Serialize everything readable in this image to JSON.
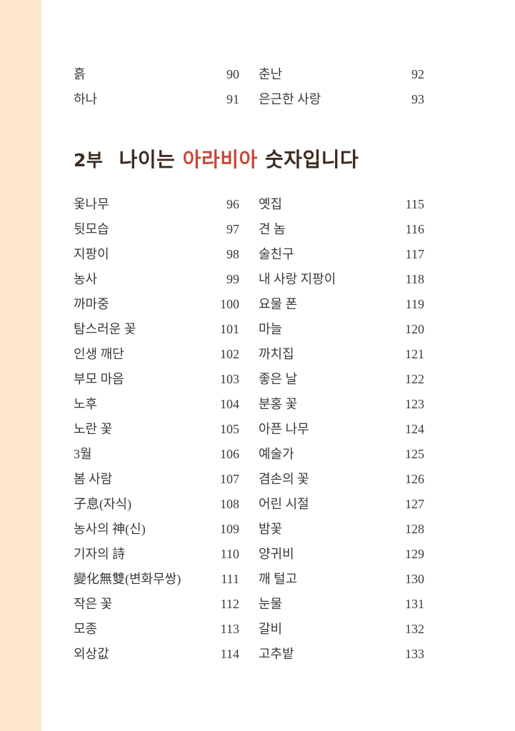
{
  "colors": {
    "margin_strip": "#fde6cc",
    "title": "#3d2a1f",
    "title_highlight": "#c5483a"
  },
  "top_entries": [
    {
      "left": {
        "title": "흙",
        "page": "90"
      },
      "right": {
        "title": "춘난",
        "page": "92"
      }
    },
    {
      "left": {
        "title": "하나",
        "page": "91"
      },
      "right": {
        "title": "은근한 사랑",
        "page": "93"
      }
    }
  ],
  "section": {
    "part": "2부",
    "title_before": "나이는",
    "title_highlight": "아라비아",
    "title_after": "숫자입니다"
  },
  "entries": [
    {
      "left": {
        "title": "옻나무",
        "page": "96"
      },
      "right": {
        "title": "옛집",
        "page": "115"
      }
    },
    {
      "left": {
        "title": "뒷모습",
        "page": "97"
      },
      "right": {
        "title": "견 놈",
        "page": "116"
      }
    },
    {
      "left": {
        "title": "지팡이",
        "page": "98"
      },
      "right": {
        "title": "술친구",
        "page": "117"
      }
    },
    {
      "left": {
        "title": "농사",
        "page": "99"
      },
      "right": {
        "title": "내 사랑 지팡이",
        "page": "118"
      }
    },
    {
      "left": {
        "title": "까마중",
        "page": "100"
      },
      "right": {
        "title": "요물 폰",
        "page": "119"
      }
    },
    {
      "left": {
        "title": "탐스러운 꽃",
        "page": "101"
      },
      "right": {
        "title": "마늘",
        "page": "120"
      }
    },
    {
      "left": {
        "title": "인생 깨단",
        "page": "102"
      },
      "right": {
        "title": "까치집",
        "page": "121"
      }
    },
    {
      "left": {
        "title": "부모 마음",
        "page": "103"
      },
      "right": {
        "title": "좋은 날",
        "page": "122"
      }
    },
    {
      "left": {
        "title": "노후",
        "page": "104"
      },
      "right": {
        "title": "분홍 꽃",
        "page": "123"
      }
    },
    {
      "left": {
        "title": "노란 꽃",
        "page": "105"
      },
      "right": {
        "title": "아픈 나무",
        "page": "124"
      }
    },
    {
      "left": {
        "title": "3월",
        "page": "106"
      },
      "right": {
        "title": "예술가",
        "page": "125"
      }
    },
    {
      "left": {
        "title": "봄 사람",
        "page": "107"
      },
      "right": {
        "title": "겸손의 꽃",
        "page": "126"
      }
    },
    {
      "left": {
        "title": "子息(자식)",
        "page": "108"
      },
      "right": {
        "title": "어린 시절",
        "page": "127"
      }
    },
    {
      "left": {
        "title": "농사의 神(신)",
        "page": "109"
      },
      "right": {
        "title": "밤꽃",
        "page": "128"
      }
    },
    {
      "left": {
        "title": "기자의 詩",
        "page": "110"
      },
      "right": {
        "title": "양귀비",
        "page": "129"
      }
    },
    {
      "left": {
        "title": "變化無雙(변화무쌍)",
        "page": "111"
      },
      "right": {
        "title": "깨 털고",
        "page": "130"
      }
    },
    {
      "left": {
        "title": "작은 꽃",
        "page": "112"
      },
      "right": {
        "title": "눈물",
        "page": "131"
      }
    },
    {
      "left": {
        "title": "모종",
        "page": "113"
      },
      "right": {
        "title": "갈비",
        "page": "132"
      }
    },
    {
      "left": {
        "title": "외상값",
        "page": "114"
      },
      "right": {
        "title": "고추밭",
        "page": "133"
      }
    }
  ]
}
